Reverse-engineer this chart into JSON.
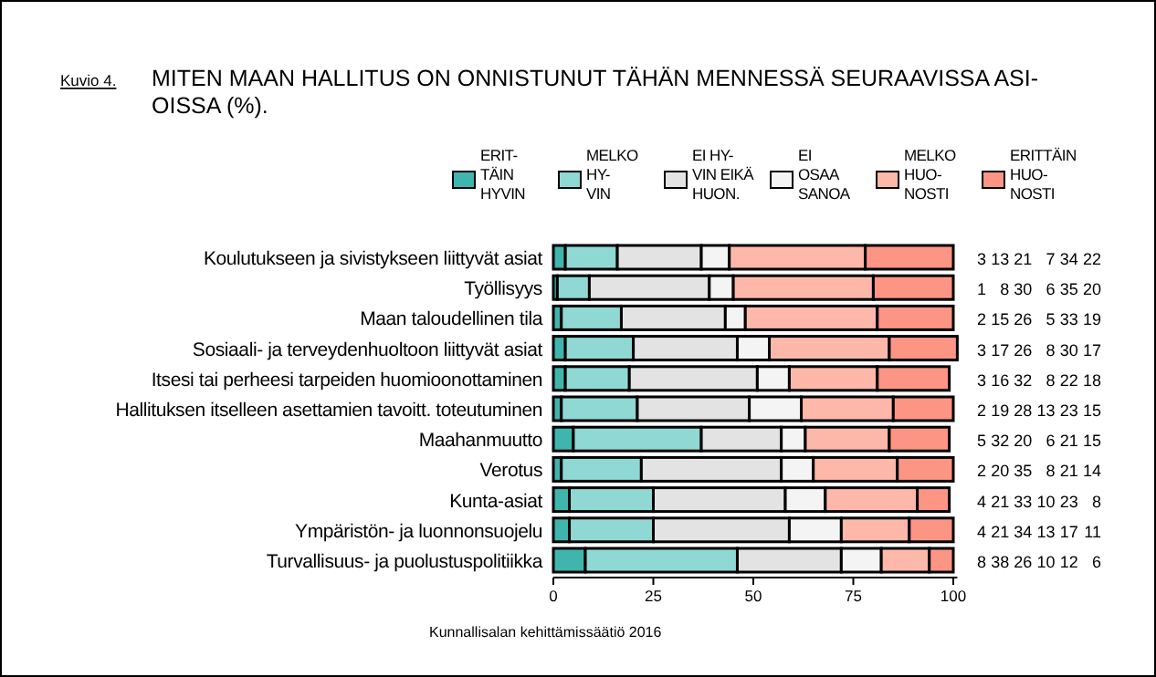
{
  "chart_data": {
    "type": "bar",
    "orientation": "horizontal",
    "stacked": true,
    "title": "MITEN MAAN HALLITUS ON ONNISTUNUT TÄHÄN MENNESSÄ SEURAAVISSA ASI-\nOISSA (%).",
    "annotations": [
      "Kuvio 4.",
      "Kunnallisalan kehittämissäätiö 2016"
    ],
    "categories": [
      "Koulutukseen ja sivistykseen liittyvät asiat",
      "Työllisyys",
      "Maan taloudellinen tila",
      "Sosiaali- ja terveydenhuoltoon liittyvät asiat",
      "Itsesi tai perheesi tarpeiden huomioonottaminen",
      "Hallituksen itselleen asettamien tavoitt. toteutuminen",
      "Maahanmuutto",
      "Verotus",
      "Kunta-asiat",
      "Ympäristön- ja luonnonsuojelu",
      "Turvallisuus- ja puolustuspolitiikka"
    ],
    "series": [
      {
        "name": "ERIT-\nTÄIN\nHYVIN",
        "color": "#40b5ad",
        "values": [
          3,
          1,
          2,
          3,
          3,
          2,
          5,
          2,
          4,
          4,
          8
        ]
      },
      {
        "name": "MELKO\nHY-\nVIN",
        "color": "#8fd8d3",
        "values": [
          13,
          8,
          15,
          17,
          16,
          19,
          32,
          20,
          21,
          21,
          38
        ]
      },
      {
        "name": "EI HY-\nVIN EIKÄ\nHUON.",
        "color": "#e3e3e3",
        "values": [
          21,
          30,
          26,
          26,
          32,
          28,
          20,
          35,
          33,
          34,
          26
        ]
      },
      {
        "name": "EI\nOSAA\nSANOA",
        "color": "#f4f4f4",
        "values": [
          7,
          6,
          5,
          8,
          8,
          13,
          6,
          8,
          10,
          13,
          10
        ]
      },
      {
        "name": "MELKO\nHUO-\nNOSTI",
        "color": "#fdb8aa",
        "values": [
          34,
          35,
          33,
          30,
          22,
          23,
          21,
          21,
          23,
          17,
          12
        ]
      },
      {
        "name": "ERITTÄIN\nHUO-\nNOSTI",
        "color": "#fc9584",
        "values": [
          22,
          20,
          19,
          17,
          18,
          15,
          15,
          14,
          8,
          11,
          6
        ]
      }
    ],
    "xlim": [
      0,
      101
    ],
    "xticks": [
      0,
      25,
      50,
      75,
      100
    ],
    "data_labels": true,
    "legend": "top",
    "grid": false
  }
}
